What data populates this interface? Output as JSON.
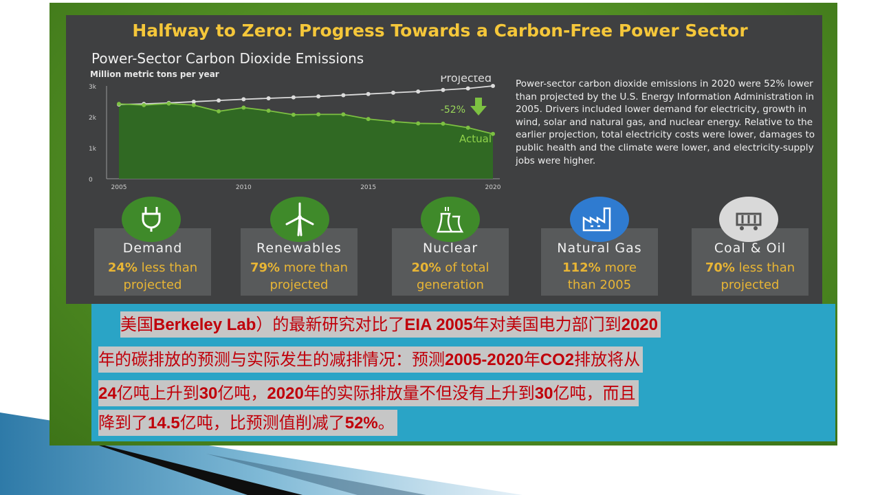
{
  "title": "Halfway to Zero: Progress Towards a Carbon-Free Power Sector",
  "chart_data": {
    "type": "line",
    "title": "Power-Sector Carbon Dioxide Emissions",
    "ylabel": "Million metric tons per year",
    "xlabel": "",
    "x": [
      2005,
      2006,
      2007,
      2008,
      2009,
      2010,
      2011,
      2012,
      2013,
      2014,
      2015,
      2016,
      2017,
      2018,
      2019,
      2020
    ],
    "xticks": [
      "2005",
      "2010",
      "2015",
      "2020"
    ],
    "yticks": [
      "0",
      "1k",
      "2k",
      "3k"
    ],
    "ylim": [
      0,
      3000
    ],
    "series": [
      {
        "name": "Projected",
        "color": "#dcdcdc",
        "values": [
          2400,
          2420,
          2450,
          2490,
          2530,
          2570,
          2600,
          2630,
          2660,
          2700,
          2740,
          2780,
          2820,
          2870,
          2920,
          3000
        ]
      },
      {
        "name": "Actual",
        "color": "#7dc142",
        "values": [
          2420,
          2380,
          2430,
          2380,
          2180,
          2300,
          2200,
          2070,
          2080,
          2080,
          1930,
          1850,
          1790,
          1780,
          1650,
          1450
        ]
      }
    ],
    "annotation": "-52%"
  },
  "description": "Power-sector carbon dioxide emissions in 2020 were 52% lower than projected by the U.S. Energy Information Administration in 2005. Drivers included lower demand for electricity, growth in wind, solar and natural gas, and nuclear energy. Relative to the earlier projection, total electricity costs were lower, damages to public health and the climate were lower, and electricity-supply jobs were higher.",
  "cards": [
    {
      "title": "Demand",
      "bold": "24%",
      "line1": " less than",
      "line2": "projected",
      "icon": "plug-icon",
      "icon_color": "#3f8a2a"
    },
    {
      "title": "Renewables",
      "bold": "79%",
      "line1": " more than",
      "line2": "projected",
      "icon": "wind-turbine-icon",
      "icon_color": "#3f8a2a"
    },
    {
      "title": "Nuclear",
      "bold": "20%",
      "line1": " of total",
      "line2": "generation",
      "icon": "cooling-tower-icon",
      "icon_color": "#3f8a2a"
    },
    {
      "title": "Natural Gas",
      "bold": "112%",
      "line1": " more",
      "line2": "than 2005",
      "icon": "factory-icon",
      "icon_color": "#2f7bd0"
    },
    {
      "title": "Coal & Oil",
      "bold": "70%",
      "line1": " less than",
      "line2": "projected",
      "icon": "coal-cart-icon",
      "icon_color": "#d9d9d9"
    }
  ],
  "caption": {
    "line1": {
      "a": "美国",
      "b1": "Berkeley Lab",
      "c": "）的最新研究对比了",
      "b2": "EIA 2005",
      "d": "年对美国电力部门到",
      "b3": "2020"
    },
    "line2": {
      "a": "年的碳排放的预测与实际发生的减排情况：预测",
      "b1": "2005-2020",
      "c": "年",
      "b2": "CO2",
      "d": "排放将从"
    },
    "line3": {
      "b1": "24",
      "a": "亿吨上升到",
      "b2": "30",
      "c": "亿吨，",
      "b3": "2020",
      "d": "年的实际排放量不但没有上升到",
      "b4": "30",
      "e": "亿吨，而且"
    },
    "line4": {
      "a": "降到了",
      "b1": "14.5",
      "c": "亿吨，比预测值削减了",
      "b2": "52%",
      "d": "。"
    }
  },
  "colors": {
    "frame_green": "#4e8a22",
    "panel": "#3f4041",
    "title_gold": "#f5c73a",
    "caption_bg": "#2aa4c6",
    "caption_text": "#c0000a",
    "actual_green": "#7dc142",
    "projected_gray": "#dcdcdc"
  }
}
